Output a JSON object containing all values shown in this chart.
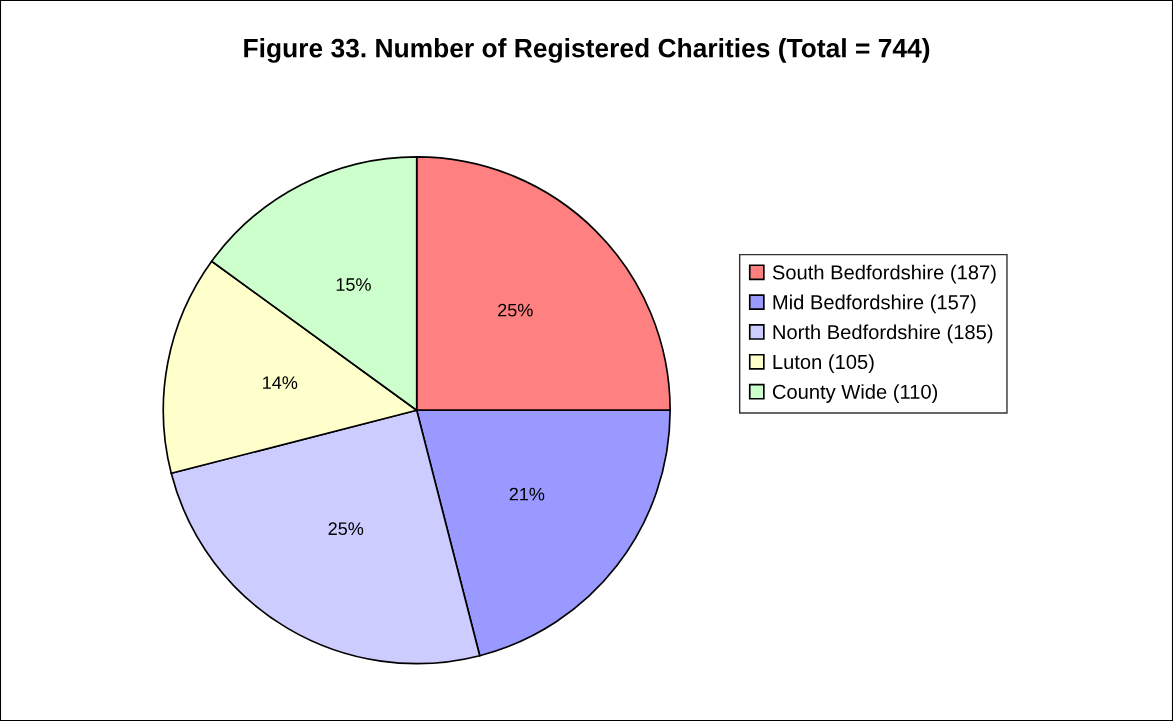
{
  "chart_data": {
    "type": "pie",
    "title": "Figure 33. Number of Registered Charities (Total = 744)",
    "categories": [
      "South Bedfordshire (187)",
      "Mid Bedfordshire (157)",
      "North Bedfordshire (185)",
      "Luton (105)",
      "County Wide (110)"
    ],
    "values": [
      25,
      21,
      25,
      14,
      15
    ],
    "value_labels": [
      "25%",
      "21%",
      "25%",
      "14%",
      "15%"
    ],
    "colors": [
      "#ff8080",
      "#9999ff",
      "#ccccff",
      "#ffffcc",
      "#ccffcc"
    ],
    "legend": "right"
  }
}
